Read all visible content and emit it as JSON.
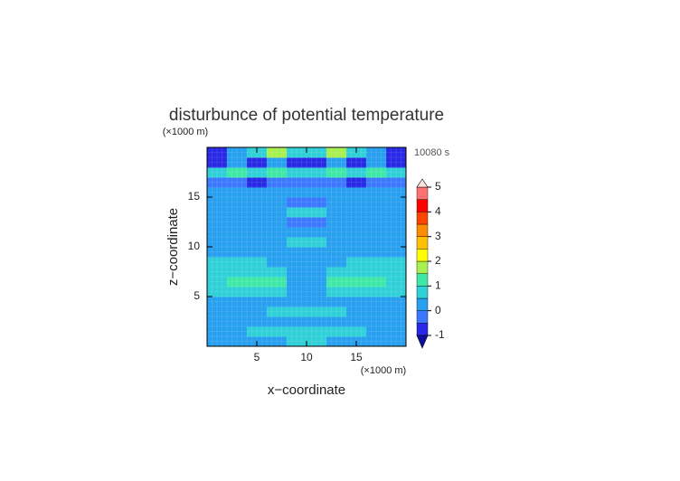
{
  "chart_data": {
    "type": "contour",
    "title": "disturbunce of potential temperature",
    "x_label": "x−coordinate",
    "y_label": "z−coordinate",
    "x_unit": "(×1000 m)",
    "y_unit": "(×1000 m)",
    "time_label": "10080 s",
    "xlim": [
      0,
      20
    ],
    "ylim": [
      0,
      20
    ],
    "xticks": [
      5,
      10,
      15
    ],
    "yticks": [
      5,
      10,
      15
    ],
    "levels": [
      -1,
      -0.5,
      0,
      0.5,
      1,
      1.5,
      2,
      2.5,
      3,
      3.5,
      4,
      4.5,
      5
    ],
    "colors": [
      "#2828e6",
      "#3c78ff",
      "#28a0f0",
      "#30d0d8",
      "#40e8a8",
      "#a8f050",
      "#ffff00",
      "#ffc000",
      "#ff8c00",
      "#ff4600",
      "#ff0000",
      "#ff7070",
      "#ffa8a8"
    ],
    "under_color": "#1010a0",
    "over_color": "#ffe0e0",
    "colorbar_ticks": [
      -1,
      0,
      1,
      2,
      3,
      4,
      5
    ],
    "z": [
      [
        0.2,
        0.2,
        0.3,
        0.4,
        0.8,
        0.8,
        0.4,
        0.3,
        0.2,
        0.2
      ],
      [
        0.2,
        0.3,
        0.6,
        0.7,
        0.8,
        0.8,
        0.7,
        0.6,
        0.3,
        0.2
      ],
      [
        0.3,
        0.3,
        0.3,
        0.3,
        0.3,
        0.3,
        0.3,
        0.3,
        0.3,
        0.3
      ],
      [
        0.3,
        0.3,
        0.4,
        0.6,
        0.8,
        0.8,
        0.6,
        0.4,
        0.3,
        0.3
      ],
      [
        0.3,
        0.3,
        0.3,
        0.2,
        0.2,
        0.2,
        0.2,
        0.3,
        0.3,
        0.3
      ],
      [
        0.6,
        0.9,
        0.9,
        0.7,
        0.3,
        0.3,
        0.7,
        0.9,
        0.9,
        0.6
      ],
      [
        0.8,
        1.2,
        1.2,
        1.0,
        0.4,
        0.4,
        1.0,
        1.2,
        1.2,
        0.8
      ],
      [
        0.7,
        0.9,
        0.9,
        0.8,
        0.3,
        0.3,
        0.8,
        0.9,
        0.9,
        0.7
      ],
      [
        0.6,
        0.6,
        0.6,
        0.4,
        0.3,
        0.3,
        0.4,
        0.6,
        0.6,
        0.6
      ],
      [
        0.2,
        0.2,
        0.2,
        0.2,
        0.2,
        0.2,
        0.2,
        0.2,
        0.2,
        0.2
      ],
      [
        0.2,
        0.2,
        0.2,
        0.3,
        0.8,
        0.8,
        0.3,
        0.2,
        0.2,
        0.2
      ],
      [
        0.2,
        0.2,
        0.2,
        0.2,
        0.2,
        0.2,
        0.2,
        0.2,
        0.2,
        0.2
      ],
      [
        0.1,
        0.1,
        0.2,
        0.1,
        -0.2,
        -0.2,
        0.1,
        0.2,
        0.1,
        0.1
      ],
      [
        0.2,
        0.2,
        0.3,
        0.3,
        0.8,
        0.8,
        0.3,
        0.3,
        0.2,
        0.2
      ],
      [
        0.1,
        0.1,
        0.1,
        0.0,
        -0.2,
        -0.2,
        0.0,
        0.1,
        0.1,
        0.1
      ],
      [
        0.3,
        0.3,
        0.3,
        0.3,
        0.3,
        0.3,
        0.3,
        0.3,
        0.3,
        0.3
      ],
      [
        -0.4,
        -0.4,
        -0.6,
        -0.4,
        -0.4,
        -0.4,
        -0.4,
        -0.6,
        -0.4,
        -0.4
      ],
      [
        0.7,
        1.2,
        0.7,
        1.2,
        0.6,
        0.6,
        1.2,
        0.7,
        1.2,
        0.7
      ],
      [
        -0.6,
        0.2,
        -0.6,
        0.2,
        -0.6,
        -0.6,
        0.2,
        -0.6,
        0.2,
        -0.6
      ],
      [
        -0.6,
        0.2,
        0.9,
        1.5,
        0.6,
        0.6,
        1.5,
        0.9,
        0.2,
        -0.6
      ]
    ]
  }
}
